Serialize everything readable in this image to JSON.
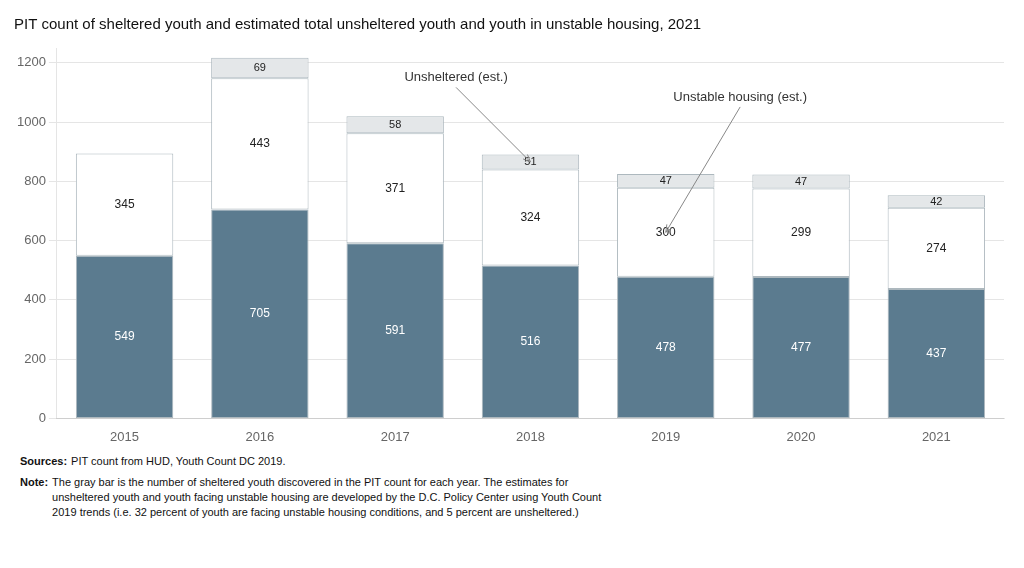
{
  "chart_data": {
    "type": "bar",
    "title": "PIT count of sheltered youth and estimated total unsheltered youth and youth in unstable housing, 2021",
    "categories": [
      "2015",
      "2016",
      "2017",
      "2018",
      "2019",
      "2020",
      "2021"
    ],
    "stacked": true,
    "data_labels": true,
    "grid": true,
    "ylim": [
      0,
      1250
    ],
    "yticks": [
      0,
      200,
      400,
      600,
      800,
      1000,
      1200
    ],
    "series": [
      {
        "color": "#5b7b8f",
        "values": [
          549,
          705,
          591,
          516,
          478,
          477,
          437
        ]
      },
      {
        "color": "#ffffff",
        "values": [
          345,
          443,
          371,
          324,
          300,
          299,
          274
        ],
        "annotation": {
          "text": "Unstable housing (est.)",
          "category": "2019"
        }
      },
      {
        "color": "#e4e7e9",
        "values": [
          0,
          69,
          58,
          51,
          47,
          47,
          42
        ],
        "value_labels": [
          null,
          "69",
          "58",
          "51",
          "47",
          "47",
          "42"
        ],
        "annotation": {
          "text": "Unsheltered (est.)",
          "category": "2018"
        }
      }
    ],
    "notes": [
      {
        "label": "Sources:",
        "lines": [
          "PIT count from HUD, Youth Count DC 2019."
        ]
      },
      {
        "label": "Note:",
        "lines": [
          "The gray bar is the number of sheltered youth discovered in the PIT count for each year. The estimates for",
          "unsheltered youth and youth facing unstable housing are developed by the D.C. Policy Center using Youth Count",
          "2019 trends (i.e. 32 percent of youth are facing unstable housing conditions, and 5 percent are unsheltered.)"
        ]
      }
    ]
  }
}
